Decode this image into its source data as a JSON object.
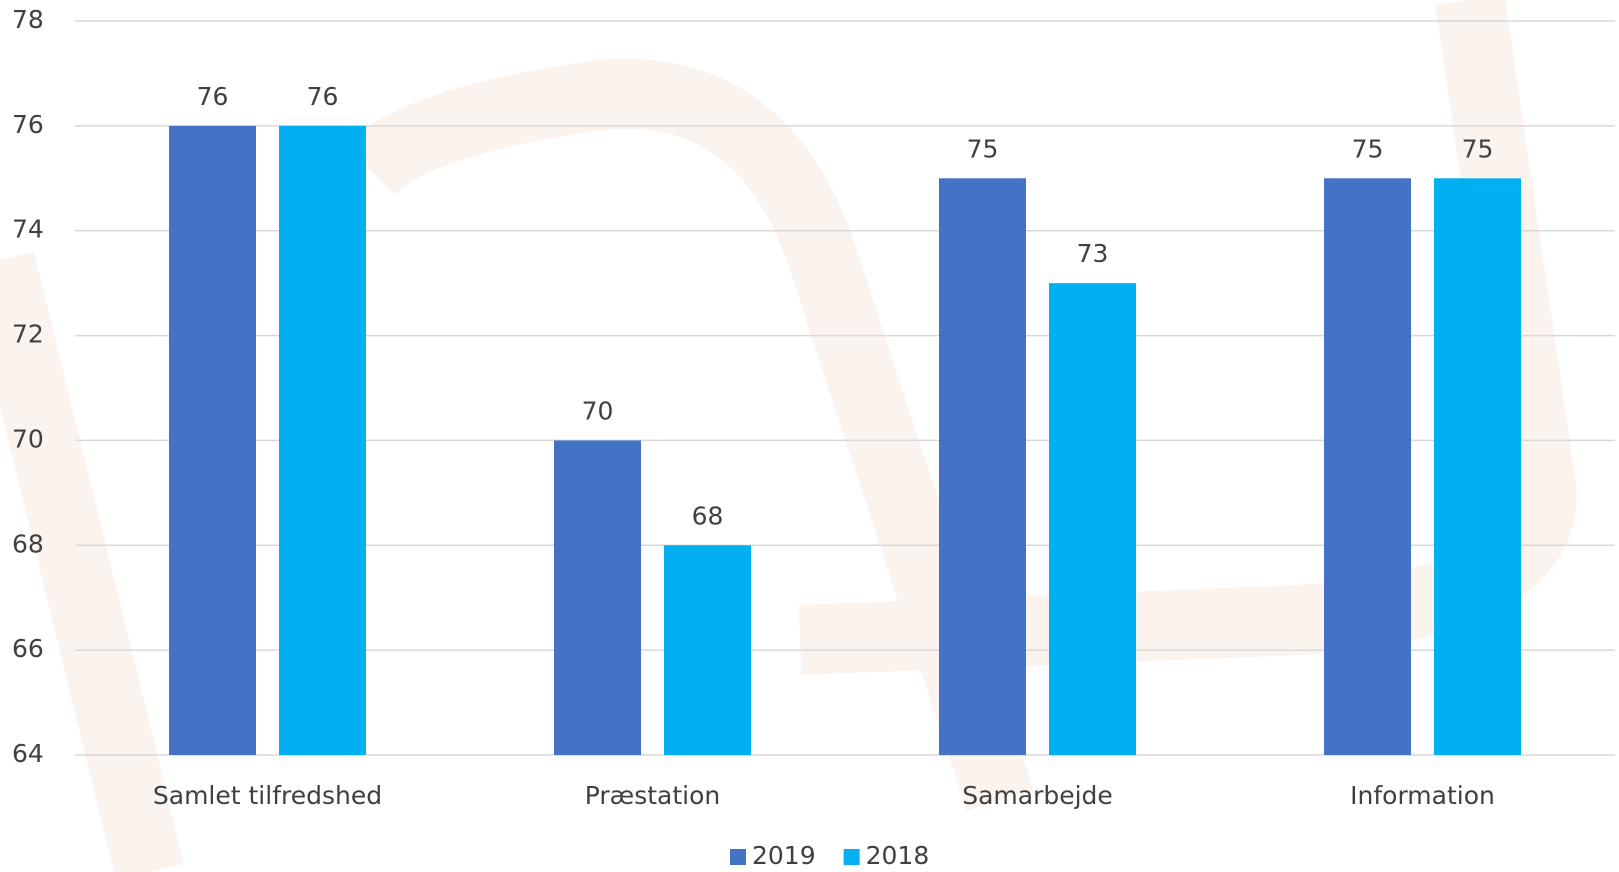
{
  "chart_data": {
    "type": "bar",
    "categories": [
      "Samlet tilfredshed",
      "Præstation",
      "Samarbejde",
      "Information"
    ],
    "series": [
      {
        "name": "2019",
        "color": "#4472c4",
        "values": [
          76,
          70,
          75,
          75
        ]
      },
      {
        "name": "2018",
        "color": "#00b0f0",
        "values": [
          76,
          68,
          73,
          75
        ]
      }
    ],
    "ylim": [
      64,
      78
    ],
    "yticks": [
      64,
      66,
      68,
      70,
      72,
      74,
      76,
      78
    ],
    "grid": true,
    "legend": "bottom"
  }
}
